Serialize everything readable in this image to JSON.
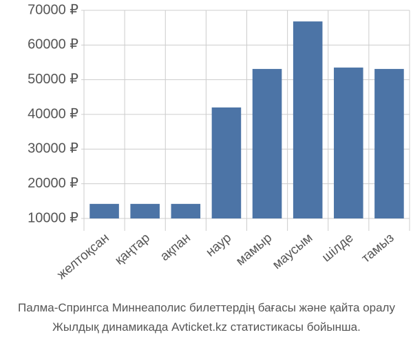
{
  "chart_data": {
    "type": "bar",
    "categories": [
      "желтоқсан",
      "қаңтар",
      "ақпан",
      "наур",
      "мамыр",
      "маусым",
      "шілде",
      "тамыз"
    ],
    "values": [
      14200,
      14200,
      14200,
      42000,
      53100,
      66800,
      53500,
      53100
    ],
    "color": "#4c74a6",
    "ylim": [
      10000,
      70000
    ],
    "yticks": [
      {
        "value": 10000,
        "label": "10000 ₽"
      },
      {
        "value": 20000,
        "label": "20000 ₽"
      },
      {
        "value": 30000,
        "label": "30000 ₽"
      },
      {
        "value": 40000,
        "label": "40000 ₽"
      },
      {
        "value": 50000,
        "label": "50000 ₽"
      },
      {
        "value": 60000,
        "label": "60000 ₽"
      },
      {
        "value": 70000,
        "label": "70000 ₽"
      }
    ],
    "grid": true,
    "caption": [
      "Палма-Спрингса Миннеаполис билеттердің бағасы және қайта оралу",
      "Жылдық динамикада Avticket.kz статистикасы бойынша."
    ]
  }
}
